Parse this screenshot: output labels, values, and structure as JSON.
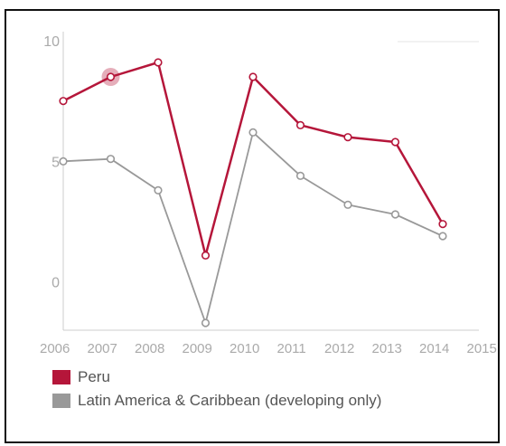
{
  "chart_data": {
    "type": "line",
    "x": [
      "2006",
      "2007",
      "2008",
      "2009",
      "2010",
      "2011",
      "2012",
      "2013",
      "2014",
      "2015"
    ],
    "series": [
      {
        "name": "Peru",
        "color": "#b5163a",
        "values": [
          7.5,
          8.5,
          9.1,
          1.1,
          8.5,
          6.5,
          6.0,
          5.8,
          2.4,
          null
        ]
      },
      {
        "name": "Latin America & Caribbean (developing only)",
        "color": "#999999",
        "values": [
          5.0,
          5.1,
          3.8,
          -1.7,
          6.2,
          4.4,
          3.2,
          2.8,
          1.9,
          null
        ]
      }
    ],
    "y_ticks": [
      "0",
      "5",
      "10"
    ],
    "ylim": [
      -2,
      10
    ],
    "highlighted_point": {
      "series": "Peru",
      "x": "2007"
    },
    "grid": false,
    "legend_position": "bottom"
  }
}
